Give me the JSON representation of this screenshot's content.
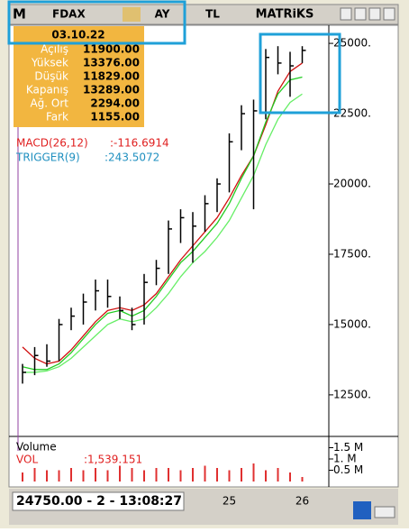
{
  "toolbar": {
    "logo": "M",
    "symbol": "FDAX",
    "period": "AY",
    "currency": "TL",
    "brand": "MATRiKS"
  },
  "info": {
    "date": "03.10.22",
    "rows": [
      [
        "Açılış",
        "11900.00"
      ],
      [
        "Yüksek",
        "13376.00"
      ],
      [
        "Düşük",
        "11829.00"
      ],
      [
        "Kapanış",
        "13289.00"
      ],
      [
        "Ağ. Ort",
        "2294.00"
      ],
      [
        "Fark",
        "1155.00"
      ]
    ]
  },
  "indicators": [
    [
      "MACD(26,12)",
      ":-116.6914"
    ],
    [
      "TRIGGER(9)",
      ":243.5072"
    ]
  ],
  "volume_panel": {
    "title": "Volume",
    "name": "VOL",
    "value": ":1,539.151"
  },
  "status": "24750.00 - 2 - 13:08:27",
  "chart_data": [
    {
      "type": "ohlc",
      "categories": [
        null,
        null,
        null,
        null,
        null,
        null,
        null,
        null,
        null,
        null,
        null,
        null,
        null,
        null,
        null,
        null,
        null,
        "25",
        null,
        null,
        null,
        null,
        null,
        "26"
      ],
      "high": [
        13600,
        14200,
        14300,
        15200,
        15600,
        16100,
        16600,
        16600,
        16000,
        15600,
        16800,
        17300,
        18700,
        19100,
        19000,
        19600,
        20200,
        21800,
        22800,
        23000,
        24800,
        24900,
        24700,
        24900
      ],
      "low": [
        12900,
        13200,
        13500,
        13700,
        14800,
        15000,
        15500,
        15600,
        15200,
        14800,
        15000,
        16400,
        16800,
        17900,
        17200,
        18300,
        19000,
        19700,
        21200,
        19100,
        22300,
        23900,
        23100,
        24300
      ],
      "close": [
        13300,
        13900,
        13700,
        15000,
        15300,
        15800,
        16200,
        16000,
        15500,
        15000,
        16500,
        17000,
        18400,
        18800,
        18500,
        19300,
        20000,
        21500,
        22500,
        22600,
        24500,
        24300,
        24200,
        24750
      ],
      "color": "#000000",
      "lines": [
        {
          "color": "#d01010",
          "values": [
            14200,
            13800,
            13600,
            13700,
            14100,
            14600,
            15100,
            15500,
            15600,
            15500,
            15700,
            16100,
            16700,
            17300,
            17800,
            18300,
            18800,
            19500,
            20300,
            21000,
            22100,
            23300,
            24000,
            24300
          ]
        },
        {
          "color": "#22cc22",
          "values": [
            13500,
            13400,
            13400,
            13600,
            14000,
            14500,
            15000,
            15400,
            15500,
            15300,
            15500,
            16000,
            16600,
            17200,
            17600,
            18100,
            18600,
            19300,
            20200,
            21000,
            22200,
            23200,
            23700,
            23800
          ]
        },
        {
          "color": "#66ee66",
          "values": [
            13300,
            13300,
            13350,
            13500,
            13800,
            14200,
            14600,
            15000,
            15200,
            15100,
            15200,
            15600,
            16100,
            16700,
            17200,
            17600,
            18100,
            18700,
            19500,
            20300,
            21400,
            22300,
            22900,
            23200
          ]
        }
      ],
      "ylim": [
        11150,
        25420
      ],
      "yticks": [
        {
          "value": 12500,
          "label": "12500."
        },
        {
          "value": 15000,
          "label": "15000."
        },
        {
          "value": 17500,
          "label": "17500."
        },
        {
          "value": 20000,
          "label": "20000."
        },
        {
          "value": 22500,
          "label": "22500."
        },
        {
          "value": 25000,
          "label": "25000."
        }
      ]
    },
    {
      "type": "bar",
      "values": [
        0.4,
        0.6,
        0.5,
        0.5,
        0.6,
        0.5,
        0.6,
        0.5,
        0.7,
        0.6,
        0.5,
        0.6,
        0.6,
        0.5,
        0.6,
        0.7,
        0.6,
        0.5,
        0.6,
        0.8,
        0.5,
        0.6,
        0.4,
        0.2
      ],
      "color": "#e03030",
      "ylim": [
        0,
        2
      ],
      "yticks": [
        {
          "value": 0.5,
          "label": "0.5 M"
        },
        {
          "value": 1,
          "label": "1. M"
        },
        {
          "value": 1.5,
          "label": "1.5 M"
        }
      ]
    }
  ]
}
